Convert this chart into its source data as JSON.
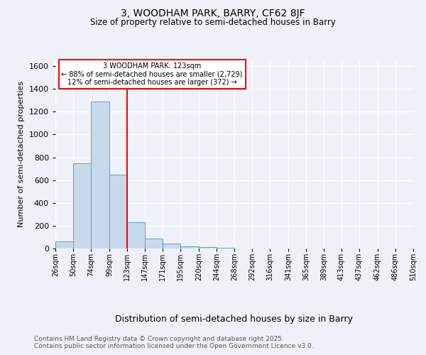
{
  "title1": "3, WOODHAM PARK, BARRY, CF62 8JF",
  "title2": "Size of property relative to semi-detached houses in Barry",
  "xlabel": "Distribution of semi-detached houses by size in Barry",
  "ylabel": "Number of semi-detached properties",
  "bin_edges": [
    26,
    50,
    74,
    99,
    123,
    147,
    171,
    195,
    220,
    244,
    268,
    292,
    316,
    341,
    365,
    389,
    413,
    437,
    462,
    486,
    510
  ],
  "counts": [
    60,
    750,
    1290,
    650,
    230,
    85,
    45,
    20,
    10,
    5,
    0,
    0,
    0,
    0,
    0,
    0,
    0,
    0,
    0,
    0
  ],
  "bar_color": "#c8d9ec",
  "bar_edge_color": "#5a9fd4",
  "red_line_x": 123,
  "annotation_title": "3 WOODHAM PARK: 123sqm",
  "annotation_line1": "← 88% of semi-detached houses are smaller (2,729)",
  "annotation_line2": "12% of semi-detached houses are larger (372) →",
  "annotation_box_color": "white",
  "annotation_box_edge_color": "red",
  "ylim": [
    0,
    1650
  ],
  "yticks": [
    0,
    200,
    400,
    600,
    800,
    1000,
    1200,
    1400,
    1600
  ],
  "footer1": "Contains HM Land Registry data © Crown copyright and database right 2025.",
  "footer2": "Contains public sector information licensed under the Open Government Licence v3.0.",
  "background_color": "#eef2f8",
  "plot_bg_color": "#eef2f8",
  "grid_color": "#ffffff"
}
